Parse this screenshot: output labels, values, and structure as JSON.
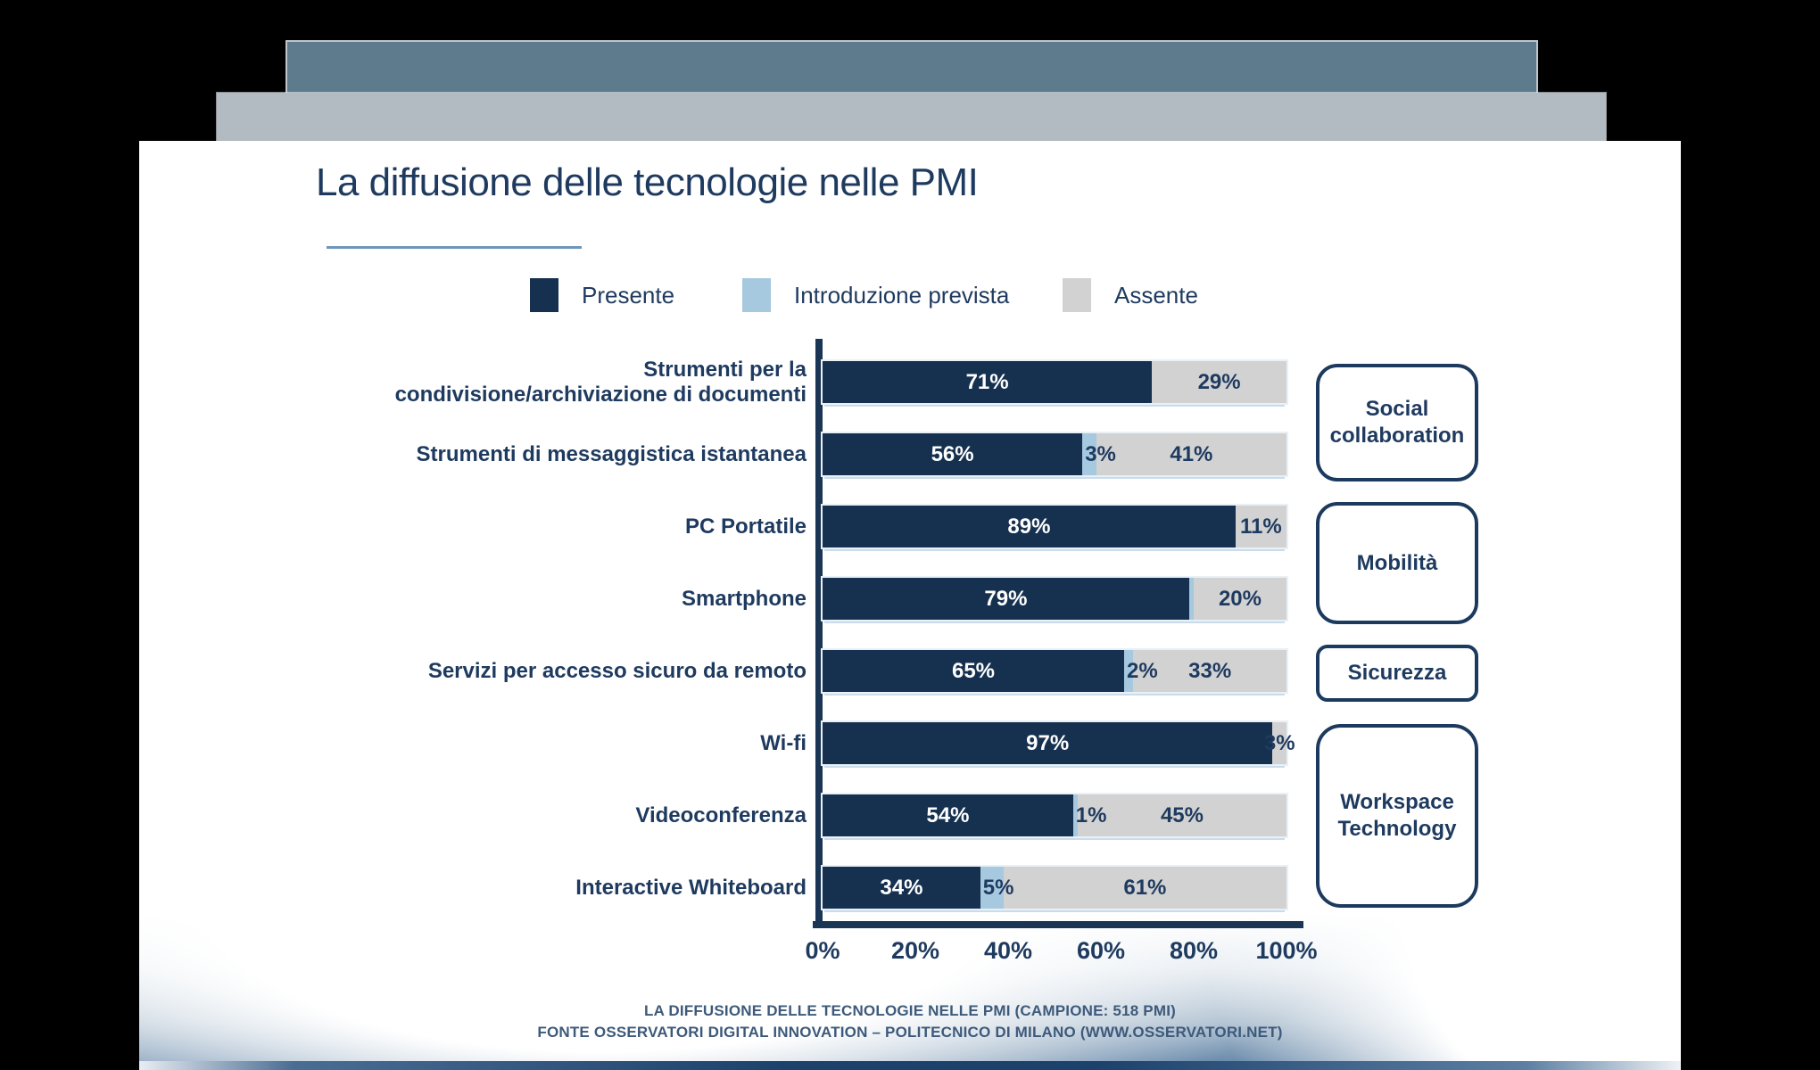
{
  "colors": {
    "presente": "#16314f",
    "prevista": "#a6c9e0",
    "assente": "#d2d2d2",
    "navy_text": "#1e3a5f",
    "deck_front_bar": "#5e7b8e",
    "deck_middle_bar": "#b2bac2",
    "title_underline": "#6e96ba",
    "footer_text": "#3d5a7b",
    "background": "#000000"
  },
  "slide": {
    "title": "La diffusione delle tecnologie nelle PMI",
    "footer_line1": "LA DIFFUSIONE DELLE TECNOLOGIE NELLE PMI (CAMPIONE: 518 PMI)",
    "footer_line2": "FONTE OSSERVATORI DIGITAL INNOVATION – POLITECNICO DI MILANO (WWW.OSSERVATORI.NET)"
  },
  "legend": [
    {
      "label": "Presente",
      "color": "#16314f"
    },
    {
      "label": "Introduzione prevista",
      "color": "#a6c9e0"
    },
    {
      "label": "Assente",
      "color": "#d2d2d2"
    }
  ],
  "chart_data": {
    "type": "bar",
    "orientation": "horizontal",
    "stacked": true,
    "title": "La diffusione delle tecnologie nelle PMI",
    "xlim": [
      0,
      100
    ],
    "x_ticks": [
      "0%",
      "20%",
      "40%",
      "60%",
      "80%",
      "100%"
    ],
    "legend_position": "top",
    "categories": [
      "Strumenti per la condivisione/archiviazione di documenti",
      "Strumenti di messaggistica istantanea",
      "PC Portatile",
      "Smartphone",
      "Servizi per accesso sicuro da remoto",
      "Wi-fi",
      "Videoconferenza",
      "Interactive Whiteboard"
    ],
    "series": [
      {
        "name": "Presente",
        "values": [
          71,
          56,
          89,
          79,
          65,
          97,
          54,
          34
        ]
      },
      {
        "name": "Introduzione prevista",
        "values": [
          0,
          3,
          0,
          1,
          2,
          0,
          1,
          5
        ]
      },
      {
        "name": "Assente",
        "values": [
          29,
          41,
          11,
          20,
          33,
          3,
          45,
          61
        ]
      }
    ],
    "rows": [
      {
        "label_lines": [
          "Strumenti per la",
          "condivisione/archiviazione di documenti"
        ],
        "presente": 71,
        "prevista": 0,
        "assente": 29,
        "presente_label": "71%",
        "prevista_label": "",
        "assente_label": "29%"
      },
      {
        "label_lines": [
          "Strumenti di messaggistica istantanea"
        ],
        "presente": 56,
        "prevista": 3,
        "assente": 41,
        "presente_label": "56%",
        "prevista_label": "3%",
        "assente_label": "41%"
      },
      {
        "label_lines": [
          "PC Portatile"
        ],
        "presente": 89,
        "prevista": 0,
        "assente": 11,
        "presente_label": "89%",
        "prevista_label": "",
        "assente_label": "11%"
      },
      {
        "label_lines": [
          "Smartphone"
        ],
        "presente": 79,
        "prevista": 1,
        "assente": 20,
        "presente_label": "79%",
        "prevista_label": "",
        "assente_label": "20%"
      },
      {
        "label_lines": [
          "Servizi per accesso sicuro da remoto"
        ],
        "presente": 65,
        "prevista": 2,
        "assente": 33,
        "presente_label": "65%",
        "prevista_label": "2%",
        "assente_label": "33%"
      },
      {
        "label_lines": [
          "Wi-fi"
        ],
        "presente": 97,
        "prevista": 0,
        "assente": 3,
        "presente_label": "97%",
        "prevista_label": "",
        "assente_label": "3%"
      },
      {
        "label_lines": [
          "Videoconferenza"
        ],
        "presente": 54,
        "prevista": 1,
        "assente": 45,
        "presente_label": "54%",
        "prevista_label": "1%",
        "assente_label": "45%"
      },
      {
        "label_lines": [
          "Interactive Whiteboard"
        ],
        "presente": 34,
        "prevista": 5,
        "assente": 61,
        "presente_label": "34%",
        "prevista_label": "5%",
        "assente_label": "61%"
      }
    ],
    "groups": [
      {
        "label": "Social collaboration",
        "rows": [
          0,
          1
        ]
      },
      {
        "label": "Mobilità",
        "rows": [
          2,
          3
        ]
      },
      {
        "label": "Sicurezza",
        "rows": [
          4
        ]
      },
      {
        "label": "Workspace Technology",
        "rows": [
          5,
          6,
          7
        ]
      }
    ]
  }
}
